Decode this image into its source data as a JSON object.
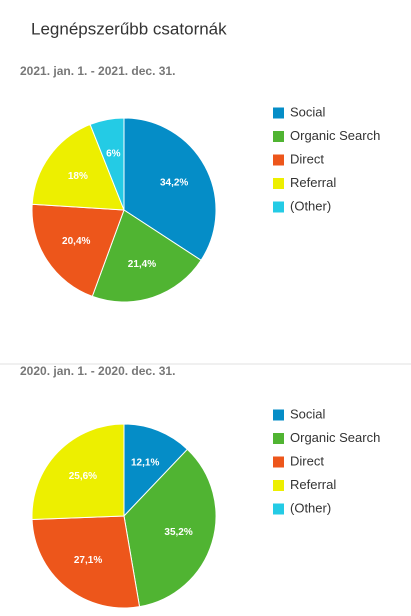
{
  "title": "Legnépszerűbb csatornák",
  "chart_data": [
    {
      "type": "pie",
      "subtitle": "2021. jan. 1. - 2021. dec. 31.",
      "categories": [
        "Social",
        "Organic Search",
        "Direct",
        "Referral",
        "(Other)"
      ],
      "values": [
        34.2,
        21.4,
        20.4,
        18,
        6
      ],
      "value_labels": [
        "34,2%",
        "21,4%",
        "20,4%",
        "18%",
        "6%"
      ],
      "colors": [
        "#058dc7",
        "#50b432",
        "#ed561b",
        "#edef00",
        "#24cbe5"
      ]
    },
    {
      "type": "pie",
      "subtitle": "2020. jan. 1. - 2020. dec. 31.",
      "categories": [
        "Social",
        "Organic Search",
        "Direct",
        "Referral",
        "(Other)"
      ],
      "values": [
        12.1,
        35.2,
        27.1,
        25.6,
        0
      ],
      "value_labels": [
        "12,1%",
        "35,2%",
        "27,1%",
        "25,6%",
        null
      ],
      "colors": [
        "#058dc7",
        "#50b432",
        "#ed561b",
        "#edef00",
        "#24cbe5"
      ]
    }
  ]
}
